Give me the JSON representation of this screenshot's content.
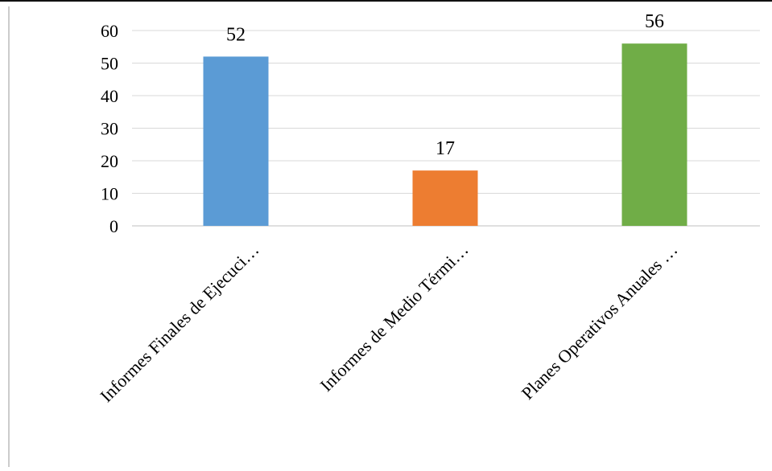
{
  "chart_data": {
    "type": "bar",
    "categories": [
      "Informes Finales de Ejecuci…",
      "Informes de Medio Térmi…",
      "Planes Operativos Anuales …"
    ],
    "values": [
      52,
      17,
      56
    ],
    "colors": [
      "#5b9bd5",
      "#ed7d31",
      "#70ad47"
    ],
    "ylim": [
      0,
      60
    ],
    "yticks": [
      0,
      10,
      20,
      30,
      40,
      50,
      60
    ],
    "data_labels": [
      "52",
      "17",
      "56"
    ],
    "grid": true,
    "legend": "none",
    "title": "",
    "xlabel": "",
    "ylabel": ""
  }
}
